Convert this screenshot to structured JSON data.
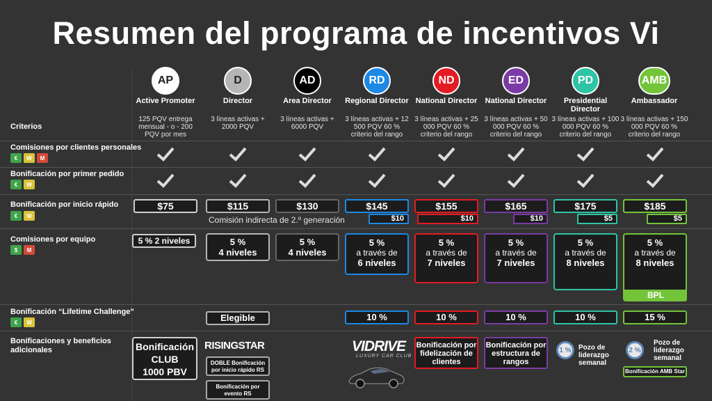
{
  "title": "Resumen del programa de incentivos Vi",
  "colors": {
    "AP": "#ffffff",
    "D": "#b5b5b5",
    "AD": "#000000",
    "RD": "#1e88e5",
    "ND": "#e31b23",
    "ED": "#7b3ba4",
    "PD": "#2ec4a6",
    "AMB": "#74c43a"
  },
  "ranks": [
    {
      "abbr": "AP",
      "name": "Active Promoter",
      "req": "125 PQV entrega mensual - o - 200 PQV por mes"
    },
    {
      "abbr": "D",
      "name": "Director",
      "req": "3 líneas activas + 2000 PQV"
    },
    {
      "abbr": "AD",
      "name": "Area Director",
      "req": "3 líneas activas + 6000 PQV"
    },
    {
      "abbr": "RD",
      "name": "Regional Director",
      "req": "3 líneas activas + 12 500 PQV 60 % criterio del rango"
    },
    {
      "abbr": "ND",
      "name": "National Director",
      "req": "3 líneas activas + 25 000 PQV 60 % criterio del rango"
    },
    {
      "abbr": "ED",
      "name": "National Director",
      "req": "3 líneas activas + 50 000 PQV 60 % criterio del rango"
    },
    {
      "abbr": "PD",
      "name": "Presidential Director",
      "req": "3 líneas activas + 100 000 PQV 60 % criterio del rango"
    },
    {
      "abbr": "AMB",
      "name": "Ambassador",
      "req": "3 líneas activas + 150 000 PQV 60 % criterio del rango"
    }
  ],
  "rows": {
    "criterios": "Criterios",
    "personal": "Comisiones por clientes personales",
    "first_order": "Bonificación por primer pedido",
    "fast_start": "Bonificación por inicio rápido",
    "team": "Comisiones por equipo",
    "lifetime": "Bonificación “Lifetime Challenge”",
    "additional": "Bonificaciones y beneficios adicionales"
  },
  "fast_start": {
    "values": [
      "$75",
      "$115",
      "$130",
      "$145",
      "$155",
      "$165",
      "$175",
      "$185"
    ],
    "indirect_label": "Comisión indirecta de 2.º generación",
    "indirect_values": [
      "$10",
      "$10",
      "$10",
      "$5",
      "$5"
    ]
  },
  "team": {
    "ap": "5 % 2 niveles",
    "d": [
      "5 %",
      "4 niveles"
    ],
    "ad": [
      "5 %",
      "4 niveles"
    ],
    "rd": [
      "5 %",
      "a través de",
      "6 niveles"
    ],
    "nd": [
      "5 %",
      "a través de",
      "7 niveles"
    ],
    "ed": [
      "5 %",
      "a través de",
      "7 niveles"
    ],
    "pd": [
      "5 %",
      "a través de",
      "8 niveles"
    ],
    "amb": [
      "5 %",
      "a través de",
      "8 niveles"
    ],
    "bpl": "BPL"
  },
  "lifetime": {
    "eligible": "Elegible",
    "values": [
      "10 %",
      "10 %",
      "10 %",
      "10 %",
      "15 %"
    ]
  },
  "additional": {
    "club": [
      "Bonificación",
      "CLUB",
      "1000 PBV"
    ],
    "risingstar": "RISINGSTAR",
    "rs1": "DOBLE Bonificación por inicio rápido RS",
    "rs2": "Bonificación por evento RS",
    "vidrive": "VIDRIVE",
    "vidrive_sub": "LUXURY CAR CLUB",
    "loyalty": "Bonificación por fidelización de clientes",
    "structure": "Bonificación por estructura de rangos",
    "pool1_pct": "1 %",
    "pool1": "Pozo de liderazgo semanal",
    "pool2_pct": "2 %",
    "pool2": "Pozo de liderazgo semanal",
    "amb_star": "Bonificación AMB Star"
  },
  "icons": [
    "check-icon",
    "calendar-week-icon",
    "calendar-month-icon",
    "dollar-icon",
    "car-icon"
  ]
}
